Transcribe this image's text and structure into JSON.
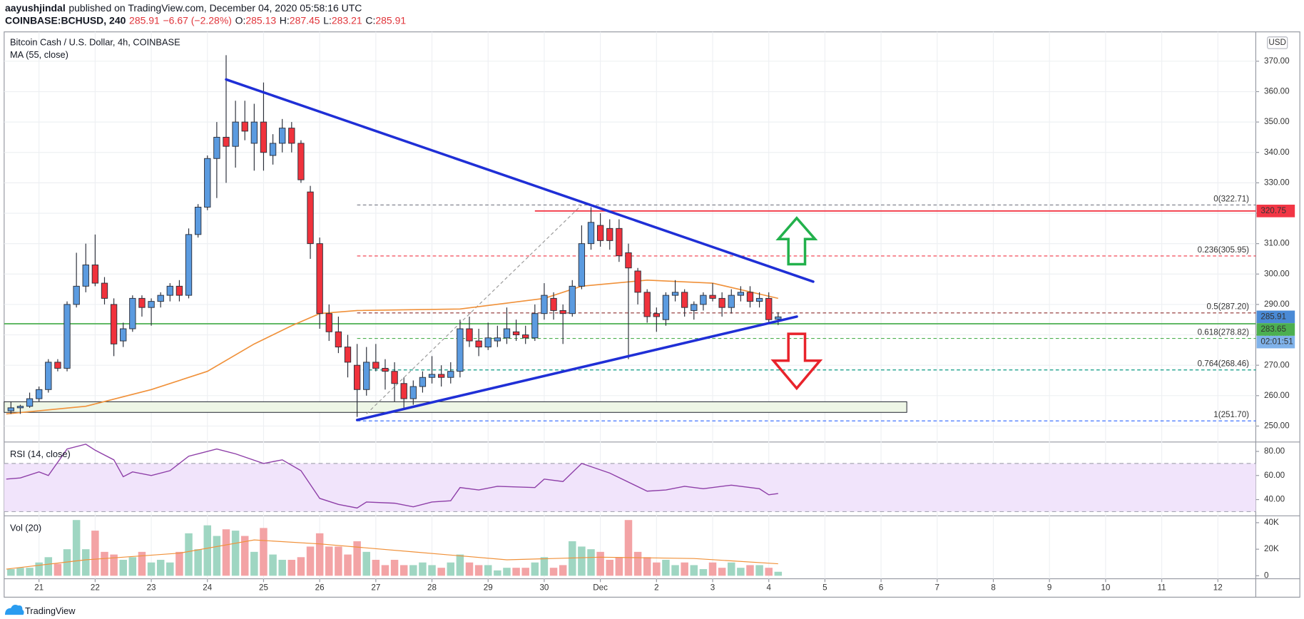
{
  "header": {
    "author": "aayushjindal",
    "published": "published on TradingView.com, December 04, 2020 05:58:16 UTC",
    "symbol": "COINBASE:BCHUSD, 240",
    "change": "−6.67 (−2.28%)",
    "ohlc_keys": [
      "O:",
      "H:",
      "L:",
      "C:"
    ],
    "brand": "TradingView"
  },
  "chart_data": [
    {
      "type": "candlestick",
      "title": "Bitcoin Cash / U.S. Dollar, 4h, COINBASE",
      "currency": "USD",
      "countdown": "02:01:51",
      "xlim": [
        -14.9,
        520.2
      ],
      "ylim": [
        245.3,
        379.1
      ],
      "grid": true,
      "yticks": [
        {
          "value": 250,
          "label": "250.00"
        },
        {
          "value": 260,
          "label": "260.00"
        },
        {
          "value": 270,
          "label": "270.00"
        },
        {
          "value": 280,
          "label": "280.00"
        },
        {
          "value": 290,
          "label": "290.00"
        },
        {
          "value": 300,
          "label": "300.00"
        },
        {
          "value": 310,
          "label": "310.00"
        },
        {
          "value": 320,
          "label": "320.00"
        },
        {
          "value": 330,
          "label": "330.00"
        },
        {
          "value": 340,
          "label": "340.00"
        },
        {
          "value": 350,
          "label": "350.00"
        },
        {
          "value": 360,
          "label": "360.00"
        },
        {
          "value": 370,
          "label": "370.00"
        }
      ],
      "up_color": "#5b9be0",
      "down_color": "#f0323c",
      "close_color": "#4a8ad6",
      "x": [
        -12,
        -8,
        -4,
        0,
        4,
        8,
        12,
        16,
        20,
        24,
        28,
        32,
        36,
        40,
        44,
        48,
        52,
        56,
        60,
        64,
        68,
        72,
        76,
        80,
        84,
        88,
        92,
        96,
        100,
        104,
        108,
        112,
        116,
        120,
        124,
        128,
        132,
        136,
        140,
        144,
        148,
        152,
        156,
        160,
        164,
        168,
        172,
        176,
        180,
        184,
        188,
        192,
        196,
        200,
        204,
        208,
        212,
        216,
        220,
        224,
        228,
        232,
        236,
        240,
        244,
        248,
        252,
        256,
        260,
        264,
        268,
        272,
        276,
        280,
        284,
        288,
        292,
        296,
        300,
        304,
        308,
        312,
        316
      ],
      "candles": [
        [
          255,
          258,
          254,
          256
        ],
        [
          256,
          257,
          254,
          256.5
        ],
        [
          256.5,
          261,
          256,
          259
        ],
        [
          259,
          263,
          258,
          262
        ],
        [
          262,
          272,
          261,
          271
        ],
        [
          271,
          272,
          268,
          269
        ],
        [
          269,
          291,
          268,
          290
        ],
        [
          290,
          307,
          289,
          296
        ],
        [
          296,
          310,
          294,
          303
        ],
        [
          303,
          313,
          296,
          297
        ],
        [
          297,
          299,
          290,
          292
        ],
        [
          290,
          292,
          273,
          277
        ],
        [
          278,
          284,
          276,
          282
        ],
        [
          282,
          293,
          281,
          292
        ],
        [
          292,
          293,
          286,
          289
        ],
        [
          289,
          292,
          283,
          291
        ],
        [
          291,
          294,
          289,
          293
        ],
        [
          293,
          297,
          291,
          296
        ],
        [
          296,
          298,
          291,
          293
        ],
        [
          293,
          315,
          292,
          313
        ],
        [
          313,
          323,
          312,
          322
        ],
        [
          322,
          339,
          321,
          338
        ],
        [
          338,
          350,
          325,
          345
        ],
        [
          345,
          372,
          330,
          342
        ],
        [
          342,
          357,
          335,
          350
        ],
        [
          350,
          357,
          344,
          347
        ],
        [
          343,
          356,
          334,
          350
        ],
        [
          350,
          363,
          334,
          340
        ],
        [
          339,
          346,
          336,
          343
        ],
        [
          343,
          351,
          340,
          348
        ],
        [
          348,
          350,
          340,
          343
        ],
        [
          343,
          344,
          330,
          331
        ],
        [
          327,
          329,
          305,
          310
        ],
        [
          310,
          312,
          282,
          287
        ],
        [
          287,
          290,
          278,
          281
        ],
        [
          281,
          286,
          274,
          276
        ],
        [
          276,
          280,
          266,
          271
        ],
        [
          270,
          277,
          253,
          262
        ],
        [
          262,
          276,
          260,
          271
        ],
        [
          271,
          277,
          268,
          269
        ],
        [
          269,
          272,
          262,
          268
        ],
        [
          268,
          271,
          258,
          264
        ],
        [
          264,
          266,
          256,
          259
        ],
        [
          259,
          265,
          257,
          263
        ],
        [
          263,
          268,
          261,
          266
        ],
        [
          266,
          273,
          264,
          267
        ],
        [
          267,
          270,
          263,
          266
        ],
        [
          266,
          271,
          264,
          268
        ],
        [
          268,
          285,
          266,
          282
        ],
        [
          282,
          286,
          276,
          278
        ],
        [
          278,
          282,
          273,
          276
        ],
        [
          276,
          284,
          275,
          279
        ],
        [
          278,
          283,
          276,
          279
        ],
        [
          279,
          289,
          277,
          282
        ],
        [
          281,
          285,
          278,
          280
        ],
        [
          280,
          283,
          277,
          279
        ],
        [
          279,
          290,
          278,
          287
        ],
        [
          287,
          297,
          285,
          293
        ],
        [
          292,
          294,
          285,
          288
        ],
        [
          288,
          290,
          277,
          287
        ],
        [
          287,
          298,
          286,
          296
        ],
        [
          296,
          316,
          295,
          310
        ],
        [
          310,
          322,
          308,
          317
        ],
        [
          316,
          320,
          309,
          311
        ],
        [
          315,
          318,
          308,
          311
        ],
        [
          315,
          318,
          304,
          306
        ],
        [
          307,
          310,
          272,
          302
        ],
        [
          301,
          302,
          290,
          294
        ],
        [
          294,
          295,
          284,
          286
        ],
        [
          287,
          289,
          281,
          286
        ],
        [
          285,
          294,
          283,
          293
        ],
        [
          293,
          298,
          291,
          294
        ],
        [
          294,
          295,
          286,
          289
        ],
        [
          288,
          291,
          285,
          290
        ],
        [
          290,
          294,
          288,
          293
        ],
        [
          293,
          297,
          291,
          292
        ],
        [
          292,
          294,
          286,
          289
        ],
        [
          289,
          295,
          287,
          293
        ],
        [
          293,
          296,
          291,
          294
        ],
        [
          294,
          296,
          289,
          291
        ],
        [
          291,
          294,
          289,
          292
        ],
        [
          292,
          294,
          284,
          285
        ],
        [
          285.13,
          287.45,
          283.21,
          285.91
        ]
      ],
      "ma": {
        "name": "MA (55, close)",
        "color": "#f0913a",
        "x": [
          -14,
          20,
          48,
          72,
          92,
          108,
          120,
          136,
          180,
          216,
          232,
          260,
          288,
          316
        ],
        "values": [
          254,
          256.5,
          262,
          268,
          277,
          283,
          287,
          288,
          288.5,
          292,
          296,
          298,
          297,
          292
        ]
      },
      "zone": {
        "x": [
          -15,
          371
        ],
        "price": [
          254.5,
          258
        ],
        "color": "#eef6e6"
      },
      "fib_from": 136,
      "fib_levels": [
        {
          "label": "0(322.71)",
          "price": 322.71,
          "color": "#787b86"
        },
        {
          "label": "0.236(305.95)",
          "price": 305.95,
          "color": "#f23645"
        },
        {
          "label": "0.5(287.20)",
          "price": 287.2,
          "color": "#8d2e2e"
        },
        {
          "label": "0.618(278.82)",
          "price": 278.82,
          "color": "#4caf50"
        },
        {
          "label": "0.764(268.46)",
          "price": 268.46,
          "color": "#089981"
        },
        {
          "label": "1(251.70)",
          "price": 251.7,
          "color": "#2962ff"
        }
      ],
      "fib_guide": {
        "points": [
          [
            140,
            254
          ],
          [
            232,
            322.71
          ]
        ],
        "color": "#9a9a9a"
      },
      "trendlines": [
        {
          "points": [
            [
              80,
              364
            ],
            [
              331,
              297.5
            ]
          ],
          "color": "#1f2fd6"
        },
        {
          "points": [
            [
              136,
              252
            ],
            [
              324,
              286
            ]
          ],
          "color": "#1f2fd6"
        }
      ],
      "hlines": [
        {
          "price": 320.75,
          "color": "#f23645",
          "from": 212
        },
        {
          "price": 283.65,
          "color": "#4caf50",
          "from": -15
        }
      ]
    },
    {
      "type": "line",
      "title": "RSI (14, close)",
      "color": "#8e3fa8",
      "band": [
        30,
        70
      ],
      "band_color": "#f1e4fb",
      "xlim": [
        -14.9,
        520.2
      ],
      "ylim": [
        27.9,
        86.4
      ],
      "yticks": [
        {
          "value": 40,
          "label": "40.00"
        },
        {
          "value": 60,
          "label": "60.00"
        },
        {
          "value": 80,
          "label": "80.00"
        }
      ],
      "x": [
        -14,
        -8,
        0,
        4,
        12,
        20,
        24,
        32,
        36,
        40,
        48,
        56,
        64,
        76,
        84,
        96,
        104,
        112,
        120,
        128,
        136,
        140,
        152,
        160,
        168,
        176,
        180,
        188,
        196,
        212,
        216,
        224,
        232,
        244,
        260,
        268,
        276,
        284,
        296,
        308,
        312,
        316
      ],
      "values": [
        57,
        58,
        63,
        60,
        82,
        86,
        81,
        73,
        59,
        63,
        60,
        64,
        76,
        82,
        78,
        70,
        73,
        64,
        41,
        36,
        33,
        38,
        37,
        34,
        38,
        39,
        50,
        48,
        51,
        50,
        57,
        55,
        70,
        62,
        47,
        48,
        51,
        49,
        52,
        49,
        44,
        45
      ]
    },
    {
      "type": "bar",
      "title": "Vol (20)",
      "xlim": [
        -14.9,
        520.2
      ],
      "ylim": [
        -1000,
        43900
      ],
      "up_color": "#9fd6c2",
      "down_color": "#f3a3a5",
      "yticks": [
        0,
        {
          "value": 20000,
          "label": "20K"
        },
        {
          "value": 40000,
          "label": "40K"
        }
      ],
      "xticks": [
        {
          "value": 0,
          "label": "21"
        },
        {
          "value": 24,
          "label": "22"
        },
        {
          "value": 48,
          "label": "23"
        },
        {
          "value": 72,
          "label": "24"
        },
        {
          "value": 96,
          "label": "25"
        },
        {
          "value": 120,
          "label": "26"
        },
        {
          "value": 144,
          "label": "27"
        },
        {
          "value": 168,
          "label": "28"
        },
        {
          "value": 192,
          "label": "29"
        },
        {
          "value": 216,
          "label": "30"
        },
        {
          "value": 240,
          "label": "Dec"
        },
        {
          "value": 264,
          "label": "2"
        },
        {
          "value": 288,
          "label": "3"
        },
        {
          "value": 312,
          "label": "4"
        },
        {
          "value": 336,
          "label": "5"
        },
        {
          "value": 360,
          "label": "6"
        },
        {
          "value": 384,
          "label": "7"
        },
        {
          "value": 408,
          "label": "8"
        },
        {
          "value": 432,
          "label": "9"
        },
        {
          "value": 456,
          "label": "10"
        },
        {
          "value": 480,
          "label": "11"
        },
        {
          "value": 504,
          "label": "12"
        }
      ],
      "x": [
        -12,
        -8,
        -4,
        0,
        4,
        8,
        12,
        16,
        20,
        24,
        28,
        32,
        36,
        40,
        44,
        48,
        52,
        56,
        60,
        64,
        68,
        72,
        76,
        80,
        84,
        88,
        92,
        96,
        100,
        104,
        108,
        112,
        116,
        120,
        124,
        128,
        132,
        136,
        140,
        144,
        148,
        152,
        156,
        160,
        164,
        168,
        172,
        176,
        180,
        184,
        188,
        192,
        196,
        200,
        204,
        208,
        212,
        216,
        220,
        224,
        228,
        232,
        236,
        240,
        244,
        248,
        252,
        256,
        260,
        264,
        268,
        272,
        276,
        280,
        284,
        288,
        292,
        296,
        300,
        304,
        308,
        312,
        316
      ],
      "values": [
        5000,
        6000,
        6000,
        10000,
        14000,
        9000,
        20000,
        42000,
        20000,
        34000,
        18000,
        16000,
        12000,
        14000,
        18000,
        10000,
        12000,
        10000,
        18000,
        32000,
        20000,
        38000,
        30000,
        35000,
        34000,
        30000,
        18000,
        36000,
        16000,
        12000,
        12000,
        14000,
        22000,
        32000,
        22000,
        22000,
        16000,
        26000,
        18000,
        12000,
        8000,
        12000,
        8000,
        8000,
        10000,
        8000,
        6000,
        10000,
        16000,
        10000,
        8000,
        8000,
        4000,
        6000,
        6000,
        6000,
        10000,
        14000,
        6000,
        8000,
        26000,
        22000,
        20000,
        18000,
        12000,
        14000,
        42000,
        18000,
        14000,
        10000,
        12000,
        8000,
        10000,
        8000,
        5000,
        10000,
        6000,
        10000,
        6000,
        8000,
        8000,
        6000,
        3000
      ],
      "ma": {
        "color": "#f0913a",
        "x": [
          -14,
          20,
          60,
          92,
          120,
          160,
          200,
          240,
          280,
          316
        ],
        "values": [
          5000,
          12000,
          17000,
          27000,
          24000,
          18000,
          12000,
          14000,
          13000,
          9000
        ]
      }
    }
  ]
}
